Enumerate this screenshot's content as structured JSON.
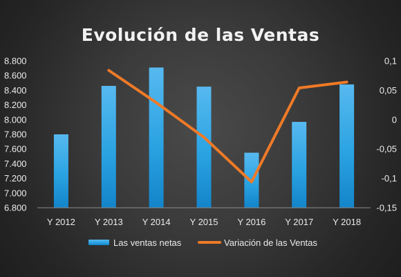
{
  "chart_data": {
    "type": "bar",
    "title": "Evolución de las Ventas",
    "categories": [
      "Y 2012",
      "Y 2013",
      "Y 2014",
      "Y 2015",
      "Y 2016",
      "Y 2017",
      "Y 2018"
    ],
    "series": [
      {
        "name": "Las ventas netas",
        "type": "bar",
        "axis": "left",
        "color": "#2aa4e4",
        "values": [
          7800,
          8460,
          8710,
          8450,
          7550,
          7970,
          8480
        ]
      },
      {
        "name": "Variación de las Ventas",
        "type": "line",
        "axis": "right",
        "color": "#f07a27",
        "values": [
          null,
          0.084,
          0.029,
          -0.03,
          -0.106,
          0.054,
          0.064
        ]
      }
    ],
    "y_left": {
      "ylim": [
        6800,
        8800
      ],
      "ticks": [
        6800,
        7000,
        7200,
        7400,
        7600,
        7800,
        8000,
        8200,
        8400,
        8600,
        8800
      ],
      "tick_labels": [
        "6.800",
        "7.000",
        "7.200",
        "7.400",
        "7.600",
        "7.800",
        "8.000",
        "8.200",
        "8.400",
        "8.600",
        "8.800"
      ]
    },
    "y_right": {
      "ylim": [
        -0.15,
        0.1
      ],
      "ticks": [
        -0.15,
        -0.1,
        -0.05,
        0,
        0.05,
        0.1
      ],
      "tick_labels": [
        "-0,15",
        "-0,1",
        "-0,05",
        "0",
        "0,05",
        "0,1"
      ]
    },
    "xlabel": "",
    "ylabel": "",
    "grid": false,
    "legend": {
      "position": "bottom",
      "entries": [
        "Las ventas netas",
        "Variación de las Ventas"
      ]
    }
  }
}
